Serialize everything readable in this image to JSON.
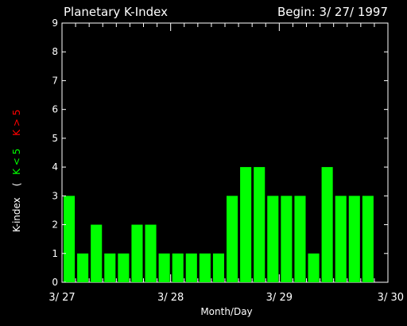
{
  "header": {
    "title": "Planetary K-Index",
    "begin_label": "Begin: 3/ 27/ 1997"
  },
  "colors": {
    "background": "#000000",
    "foreground": "#ffffff",
    "bar_low": "#00ff00",
    "bar_high": "#ff0000"
  },
  "chart_data": {
    "type": "bar",
    "title": "Planetary K-Index",
    "xlabel": "Month/Day",
    "ylabel": "K-index",
    "ylabel_low": "K < 5",
    "ylabel_high": "K > 5",
    "ylabel_open_paren": "(",
    "ylim": [
      0,
      9
    ],
    "xlim_days": [
      0,
      3
    ],
    "y_ticks": [
      "0",
      "1",
      "2",
      "3",
      "4",
      "5",
      "6",
      "7",
      "8",
      "9"
    ],
    "x_ticks": [
      "3/ 27",
      "3/ 28",
      "3/ 29",
      "3/ 30"
    ],
    "interval_hours": 3,
    "values": [
      3,
      1,
      2,
      1,
      1,
      2,
      2,
      1,
      1,
      1,
      1,
      1,
      3,
      4,
      4,
      3,
      3,
      3,
      1,
      4,
      3,
      3,
      3
    ],
    "grid": false
  }
}
